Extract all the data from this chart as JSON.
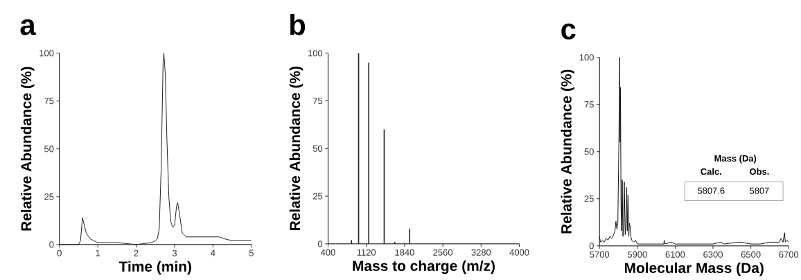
{
  "chart_data": [
    {
      "type": "line",
      "title": "a",
      "xlabel": "Time (min)",
      "ylabel": "Relative Abundance (%)",
      "color": "#222222",
      "xlim": [
        0,
        5
      ],
      "ylim": [
        0,
        100
      ],
      "xticks": [
        0,
        1,
        2,
        3,
        4,
        5
      ],
      "yticks": [
        0,
        25,
        50,
        75,
        100
      ],
      "x": [
        0,
        0.5,
        0.55,
        0.6,
        0.65,
        0.7,
        0.8,
        0.9,
        1,
        1.5,
        2,
        2.4,
        2.5,
        2.55,
        2.6,
        2.65,
        2.7,
        2.72,
        2.76,
        2.8,
        2.85,
        2.9,
        2.95,
        3.0,
        3.05,
        3.08,
        3.12,
        3.2,
        3.3,
        3.5,
        4,
        4.15,
        4.3,
        4.5,
        4.8,
        5
      ],
      "values": [
        0,
        0,
        2,
        14,
        10,
        6,
        3,
        2,
        1,
        1,
        0,
        1,
        2,
        3,
        8,
        40,
        95,
        100,
        88,
        55,
        25,
        12,
        9,
        10,
        20,
        22,
        17,
        6,
        4,
        4,
        4,
        4,
        3,
        2,
        2,
        2
      ]
    },
    {
      "type": "bar",
      "title": "b",
      "xlabel": "Mass to charge (m/z)",
      "ylabel": "Relative Abundance (%)",
      "color": "#222222",
      "xlim": [
        400,
        4000
      ],
      "ylim": [
        0,
        100
      ],
      "xticks": [
        400,
        1120,
        1840,
        2560,
        3280,
        4000
      ],
      "yticks": [
        0,
        25,
        50,
        75,
        100
      ],
      "x": [
        841,
        975,
        1166,
        1456,
        1655,
        1936
      ],
      "values": [
        2,
        100,
        95,
        60,
        1,
        8
      ]
    },
    {
      "type": "line",
      "title": "c",
      "xlabel": "Molecular Mass (Da)",
      "ylabel": "Relative Abundance (%)",
      "color": "#111111",
      "xlim": [
        5700,
        6700
      ],
      "ylim": [
        0,
        100
      ],
      "xticks": [
        5700,
        5900,
        6100,
        6300,
        6500,
        6700
      ],
      "yticks": [
        0,
        25,
        50,
        75,
        100
      ],
      "annotations": [
        "Mass (Da)",
        "Calc.",
        "Obs.",
        "5807.6",
        "5807"
      ],
      "x": [
        5700,
        5705,
        5715,
        5725,
        5735,
        5745,
        5755,
        5765,
        5775,
        5782,
        5787,
        5792,
        5797,
        5802,
        5807,
        5809,
        5811,
        5814,
        5817,
        5820,
        5824,
        5827,
        5831,
        5836,
        5840,
        5844,
        5847,
        5851,
        5855,
        5858,
        5861,
        5866,
        5870,
        5880,
        5890,
        5900,
        5920,
        5940,
        5960,
        6000,
        6040,
        6042,
        6045,
        6080,
        6100,
        6200,
        6300,
        6340,
        6360,
        6430,
        6450,
        6500,
        6550,
        6600,
        6650,
        6660,
        6670,
        6678,
        6682,
        6690,
        6700
      ],
      "values": [
        5,
        2,
        3,
        2,
        4,
        3,
        5,
        4,
        6,
        8,
        13,
        9,
        12,
        50,
        100,
        55,
        84,
        20,
        8,
        35,
        5,
        10,
        34,
        6,
        12,
        31,
        8,
        27,
        5,
        12,
        11,
        5,
        3,
        2,
        3,
        1,
        1,
        1,
        1,
        1,
        1,
        3,
        1,
        2,
        1,
        1,
        1,
        2,
        1,
        2,
        2,
        1,
        1,
        2,
        2,
        4,
        2,
        7,
        2,
        3,
        2
      ]
    }
  ]
}
